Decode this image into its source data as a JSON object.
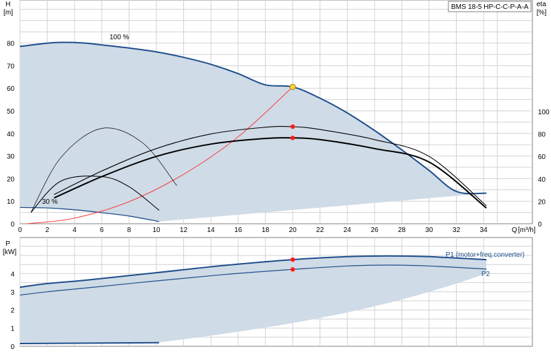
{
  "title": "BMS 18-5 HP-C-C-P-A-A",
  "colors": {
    "area": "#cfdbe6",
    "curve": "#1f4e8c",
    "eta": "#000000",
    "system": "#ff2a2a",
    "duty_point": "#ff1a1a",
    "duty_point_yellow": "#ffd23c",
    "grid": "#d2d2d2"
  },
  "chart_data": [
    {
      "type": "line",
      "panel": "head",
      "ylabel": "H",
      "yunit": "[m]",
      "y2label": "eta",
      "y2unit": "[%]",
      "xlabel": "Q",
      "xunit": "[m³/h]",
      "xlim": [
        0,
        35
      ],
      "ylim": [
        0,
        90
      ],
      "y2lim": [
        0,
        100
      ],
      "x_ticks": [
        0,
        2,
        4,
        6,
        8,
        10,
        12,
        14,
        16,
        18,
        20,
        22,
        24,
        26,
        28,
        30,
        32,
        34
      ],
      "y_ticks": [
        0,
        10,
        20,
        30,
        40,
        50,
        60,
        70,
        80
      ],
      "y2_ticks": [
        0,
        20,
        40,
        60,
        80,
        100
      ],
      "grid": true,
      "curve_labels": [
        "100 %",
        "30 %"
      ],
      "series": [
        {
          "role": "head_100",
          "x": [
            0,
            2.5,
            4.5,
            6,
            8,
            10,
            12,
            14,
            16,
            18,
            20,
            22,
            24,
            26,
            28,
            30,
            32,
            34.2
          ],
          "y": [
            78.5,
            80.2,
            80.1,
            79.2,
            77.8,
            76.1,
            73.7,
            70.6,
            66.5,
            61.5,
            60.6,
            55.6,
            49.1,
            41.3,
            32.7,
            23.6,
            14.3,
            13.5
          ]
        },
        {
          "role": "head_30",
          "x": [
            0,
            2,
            4,
            6,
            8,
            10.2
          ],
          "y": [
            7.2,
            7.0,
            6.2,
            4.9,
            3.4,
            1.0
          ]
        },
        {
          "role": "system_curve",
          "x": [
            0.5,
            4,
            8,
            12,
            16,
            20
          ],
          "y": [
            0,
            2.5,
            9.8,
            21.9,
            38.5,
            60.6
          ]
        },
        {
          "role": "eta_100_a",
          "x": [
            2.5,
            6,
            10,
            14,
            18,
            20,
            22,
            26,
            30,
            34.2
          ],
          "y2": [
            26,
            47,
            67,
            80,
            86,
            86.5,
            84,
            75,
            60,
            16
          ]
        },
        {
          "role": "eta_100_b",
          "x": [
            2.5,
            6,
            10,
            14,
            18,
            20,
            22,
            26,
            30,
            34.2
          ],
          "y2": [
            23,
            42,
            60,
            71,
            76,
            76.5,
            75,
            67,
            55,
            14
          ]
        },
        {
          "role": "eta_30_a",
          "x": [
            0.8,
            3,
            6,
            8,
            10.2
          ],
          "y2": [
            10,
            38,
            42,
            33,
            12
          ]
        },
        {
          "role": "eta_30_b",
          "x": [
            0.8,
            3,
            6,
            9,
            11.5
          ],
          "y2": [
            10,
            59,
            85,
            72,
            34
          ]
        }
      ],
      "duty_points": [
        {
          "x": 20,
          "y": 60.6,
          "axis": "H"
        },
        {
          "x": 20,
          "y2": 86.5,
          "axis": "eta"
        },
        {
          "x": 20,
          "y2": 76.5,
          "axis": "eta"
        }
      ]
    },
    {
      "type": "line",
      "panel": "power",
      "ylabel": "P",
      "yunit": "[kW]",
      "xlim": [
        0,
        35
      ],
      "ylim": [
        0,
        5.5
      ],
      "y_ticks": [
        0,
        1,
        2,
        3,
        4
      ],
      "grid": true,
      "series": [
        {
          "name": "P1 (motor+freq.converter)",
          "x": [
            0,
            2,
            5,
            10,
            15,
            20,
            24,
            27,
            30,
            34.2
          ],
          "y": [
            3.25,
            3.45,
            3.65,
            4.05,
            4.45,
            4.77,
            4.93,
            4.97,
            4.93,
            4.77
          ]
        },
        {
          "name": "P2",
          "x": [
            0,
            2,
            5,
            10,
            15,
            20,
            24,
            27,
            30,
            34.2
          ],
          "y": [
            2.82,
            3.0,
            3.22,
            3.6,
            3.95,
            4.23,
            4.42,
            4.47,
            4.42,
            4.25
          ]
        },
        {
          "role": "p_30",
          "x": [
            0,
            10.2
          ],
          "y": [
            0.15,
            0.2
          ]
        }
      ],
      "duty_points": [
        {
          "x": 20,
          "y": 4.77
        },
        {
          "x": 20,
          "y": 4.23
        }
      ]
    }
  ]
}
